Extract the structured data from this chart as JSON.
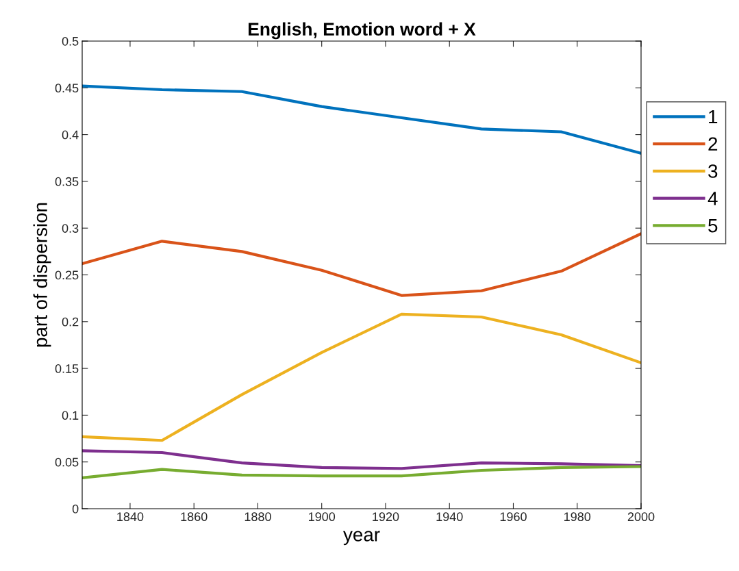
{
  "chart_data": {
    "type": "line",
    "title": "English, Emotion word + X",
    "xlabel": "year",
    "ylabel": "part of dispersion",
    "x": [
      1825,
      1850,
      1875,
      1900,
      1925,
      1950,
      1975,
      2000
    ],
    "series": [
      {
        "name": "1",
        "color": "#0072bd",
        "values": [
          0.452,
          0.448,
          0.446,
          0.43,
          0.418,
          0.406,
          0.403,
          0.38
        ]
      },
      {
        "name": "2",
        "color": "#d95319",
        "values": [
          0.262,
          0.286,
          0.275,
          0.255,
          0.228,
          0.233,
          0.254,
          0.294
        ]
      },
      {
        "name": "3",
        "color": "#edb120",
        "values": [
          0.077,
          0.073,
          0.122,
          0.167,
          0.208,
          0.205,
          0.186,
          0.156
        ]
      },
      {
        "name": "4",
        "color": "#7e2f8e",
        "values": [
          0.062,
          0.06,
          0.049,
          0.044,
          0.043,
          0.049,
          0.048,
          0.046
        ]
      },
      {
        "name": "5",
        "color": "#77ac30",
        "values": [
          0.033,
          0.042,
          0.036,
          0.035,
          0.035,
          0.041,
          0.044,
          0.045
        ]
      }
    ],
    "xlim": [
      1825,
      2000
    ],
    "xticks": [
      1840,
      1860,
      1880,
      1900,
      1920,
      1940,
      1960,
      1980,
      2000
    ],
    "ylim": [
      0,
      0.5
    ],
    "yticks": [
      0,
      0.05,
      0.1,
      0.15,
      0.2,
      0.25,
      0.3,
      0.35,
      0.4,
      0.45,
      0.5
    ],
    "grid": false,
    "legend": "right",
    "marker": "none",
    "line_style": "solid"
  }
}
